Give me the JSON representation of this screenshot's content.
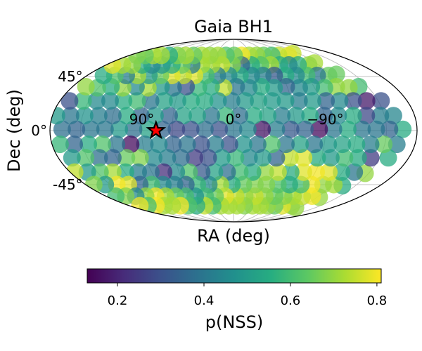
{
  "chart_data": {
    "type": "scatter",
    "projection": "mollweide",
    "title": "Gaia BH1",
    "xlabel": "RA (deg)",
    "ylabel": "Dec (deg)",
    "lat_ticks": [
      {
        "value": 45,
        "label": "45°"
      },
      {
        "value": 0,
        "label": "0°"
      },
      {
        "value": -45,
        "label": "-45°"
      }
    ],
    "lon_ticks": [
      {
        "value": 90,
        "label": "90°"
      },
      {
        "value": 0,
        "label": "0°"
      },
      {
        "value": -90,
        "label": "−90°"
      }
    ],
    "grid": true,
    "colormap": "viridis",
    "point_alpha": 0.75,
    "target": {
      "name": "Gaia BH1",
      "lon": 76,
      "lat": 0,
      "marker": "star",
      "color": "#ff0000"
    },
    "colorbar": {
      "label": "p(NSS)",
      "range": [
        0.13,
        0.81
      ],
      "ticks": [
        {
          "value": 0.2,
          "label": "0.2"
        },
        {
          "value": 0.4,
          "label": "0.4"
        },
        {
          "value": 0.6,
          "label": "0.6"
        },
        {
          "value": 0.8,
          "label": "0.8"
        }
      ]
    },
    "points_lon_lat_value": [
      [
        -166,
        1,
        0.55
      ],
      [
        -162,
        -11,
        0.42
      ],
      [
        -159,
        12,
        0.44
      ],
      [
        -159,
        -22,
        0.55
      ],
      [
        -153,
        24,
        0.3
      ],
      [
        -146,
        -35,
        0.7
      ],
      [
        -140,
        36,
        0.6
      ],
      [
        -134,
        -46,
        0.55
      ],
      [
        -128,
        47,
        0.65
      ],
      [
        -123,
        -57,
        0.7
      ],
      [
        -118,
        58,
        0.72
      ],
      [
        -113,
        -68,
        0.7
      ],
      [
        -108,
        68,
        0.75
      ],
      [
        -153,
        1,
        0.35
      ],
      [
        -149,
        -11,
        0.65
      ],
      [
        -146,
        12,
        0.42
      ],
      [
        -141,
        -22,
        0.25
      ],
      [
        -138,
        24,
        0.18
      ],
      [
        -133,
        -34,
        0.4
      ],
      [
        -128,
        35,
        0.7
      ],
      [
        -122,
        -45,
        0.72
      ],
      [
        -117,
        46,
        0.65
      ],
      [
        -111,
        -56,
        0.8
      ],
      [
        -106,
        56,
        0.7
      ],
      [
        -100,
        -66,
        0.7
      ],
      [
        -95,
        66,
        0.78
      ],
      [
        -140,
        1,
        0.4
      ],
      [
        -136,
        -11,
        0.42
      ],
      [
        -132,
        12,
        0.28
      ],
      [
        -128,
        -22,
        0.55
      ],
      [
        -124,
        24,
        0.3
      ],
      [
        -119,
        -34,
        0.55
      ],
      [
        -115,
        36,
        0.7
      ],
      [
        -109,
        -45,
        0.7
      ],
      [
        -103,
        46,
        0.4
      ],
      [
        -97,
        -56,
        0.75
      ],
      [
        -91,
        56,
        0.55
      ],
      [
        -84,
        -66,
        0.78
      ],
      [
        -78,
        66,
        0.75
      ],
      [
        -126,
        1,
        0.4
      ],
      [
        -122,
        -11,
        0.55
      ],
      [
        -119,
        12,
        0.55
      ],
      [
        -114,
        -22,
        0.6
      ],
      [
        -110,
        24,
        0.45
      ],
      [
        -105,
        -34,
        0.78
      ],
      [
        -101,
        35,
        0.6
      ],
      [
        -95,
        -45,
        0.8
      ],
      [
        -90,
        46,
        0.6
      ],
      [
        -84,
        -56,
        0.72
      ],
      [
        -78,
        56,
        0.45
      ],
      [
        -71,
        -66,
        0.65
      ],
      [
        -66,
        66,
        0.6
      ],
      [
        -112,
        1,
        0.55
      ],
      [
        -108,
        -11,
        0.52
      ],
      [
        -104,
        12,
        0.45
      ],
      [
        -100,
        -22,
        0.5
      ],
      [
        -96,
        24,
        0.35
      ],
      [
        -91,
        -34,
        0.8
      ],
      [
        -87,
        36,
        0.5
      ],
      [
        -82,
        -45,
        0.6
      ],
      [
        -77,
        46,
        0.45
      ],
      [
        -71,
        -56,
        0.68
      ],
      [
        -65,
        56,
        0.55
      ],
      [
        -58,
        -66,
        0.7
      ],
      [
        -52,
        66,
        0.65
      ],
      [
        -98,
        1,
        0.4
      ],
      [
        -94,
        -11,
        0.5
      ],
      [
        -90,
        12,
        0.35
      ],
      [
        -86,
        -22,
        0.55
      ],
      [
        -82,
        24,
        0.5
      ],
      [
        -77,
        -34,
        0.78
      ],
      [
        -73,
        35,
        0.45
      ],
      [
        -68,
        -45,
        0.55
      ],
      [
        -64,
        46,
        0.55
      ],
      [
        -58,
        -56,
        0.65
      ],
      [
        -52,
        56,
        0.72
      ],
      [
        -46,
        -66,
        0.72
      ],
      [
        -40,
        66,
        0.7
      ],
      [
        -84,
        1,
        0.15
      ],
      [
        -80,
        -11,
        0.4
      ],
      [
        -76,
        12,
        0.55
      ],
      [
        -72,
        -22,
        0.78
      ],
      [
        -68,
        24,
        0.42
      ],
      [
        -63,
        -34,
        0.55
      ],
      [
        -59,
        36,
        0.35
      ],
      [
        -54,
        -45,
        0.62
      ],
      [
        -50,
        46,
        0.32
      ],
      [
        -44,
        -56,
        0.7
      ],
      [
        -38,
        56,
        0.62
      ],
      [
        -33,
        -66,
        0.72
      ],
      [
        -27,
        66,
        0.72
      ],
      [
        -70,
        1,
        0.35
      ],
      [
        -66,
        -11,
        0.52
      ],
      [
        -62,
        12,
        0.5
      ],
      [
        -58,
        -22,
        0.75
      ],
      [
        -54,
        24,
        0.5
      ],
      [
        -49,
        -34,
        0.75
      ],
      [
        -45,
        35,
        0.5
      ],
      [
        -40,
        -45,
        0.68
      ],
      [
        -36,
        46,
        0.42
      ],
      [
        -30,
        -56,
        0.75
      ],
      [
        -25,
        56,
        0.55
      ],
      [
        -19,
        -66,
        0.68
      ],
      [
        -14,
        66,
        0.8
      ],
      [
        -56,
        1,
        0.32
      ],
      [
        -52,
        -11,
        0.4
      ],
      [
        -48,
        12,
        0.42
      ],
      [
        -44,
        -22,
        0.35
      ],
      [
        -40,
        24,
        0.5
      ],
      [
        -35,
        -34,
        0.7
      ],
      [
        -31,
        36,
        0.55
      ],
      [
        -26,
        -45,
        0.68
      ],
      [
        -22,
        46,
        0.45
      ],
      [
        -16,
        -56,
        0.7
      ],
      [
        -11,
        56,
        0.35
      ],
      [
        -6,
        -66,
        0.72
      ],
      [
        -1,
        66,
        0.65
      ],
      [
        -42,
        1,
        0.42
      ],
      [
        -38,
        -11,
        0.62
      ],
      [
        -34,
        12,
        0.52
      ],
      [
        -30,
        -22,
        0.5
      ],
      [
        -26,
        24,
        0.52
      ],
      [
        -21,
        -34,
        0.55
      ],
      [
        -17,
        35,
        0.45
      ],
      [
        -12,
        -45,
        0.65
      ],
      [
        -8,
        46,
        0.55
      ],
      [
        -3,
        -56,
        0.75
      ],
      [
        2,
        56,
        0.68
      ],
      [
        8,
        -66,
        0.72
      ],
      [
        13,
        66,
        0.62
      ],
      [
        -28,
        1,
        0.17
      ],
      [
        -24,
        -11,
        0.4
      ],
      [
        -20,
        12,
        0.55
      ],
      [
        -16,
        -22,
        0.45
      ],
      [
        -12,
        24,
        0.5
      ],
      [
        -7,
        -34,
        0.6
      ],
      [
        -3,
        36,
        0.4
      ],
      [
        2,
        -45,
        0.55
      ],
      [
        6,
        46,
        0.45
      ],
      [
        12,
        -56,
        0.78
      ],
      [
        17,
        56,
        0.75
      ],
      [
        22,
        -66,
        0.72
      ],
      [
        27,
        66,
        0.72
      ],
      [
        -14,
        1,
        0.45
      ],
      [
        -10,
        -11,
        0.48
      ],
      [
        -6,
        12,
        0.38
      ],
      [
        -2,
        -22,
        0.58
      ],
      [
        2,
        24,
        0.42
      ],
      [
        7,
        -34,
        0.38
      ],
      [
        11,
        35,
        0.75
      ],
      [
        16,
        -45,
        0.72
      ],
      [
        20,
        46,
        0.42
      ],
      [
        26,
        -56,
        0.65
      ],
      [
        31,
        56,
        0.72
      ],
      [
        36,
        -66,
        0.6
      ],
      [
        41,
        66,
        0.7
      ],
      [
        0,
        1,
        0.4
      ],
      [
        4,
        -11,
        0.3
      ],
      [
        8,
        12,
        0.58
      ],
      [
        12,
        -22,
        0.5
      ],
      [
        16,
        24,
        0.48
      ],
      [
        21,
        -34,
        0.52
      ],
      [
        25,
        36,
        0.55
      ],
      [
        30,
        -45,
        0.45
      ],
      [
        34,
        46,
        0.6
      ],
      [
        40,
        -56,
        0.6
      ],
      [
        45,
        56,
        0.72
      ],
      [
        50,
        -66,
        0.75
      ],
      [
        55,
        66,
        0.72
      ],
      [
        14,
        1,
        0.3
      ],
      [
        18,
        -11,
        0.42
      ],
      [
        22,
        12,
        0.4
      ],
      [
        26,
        -22,
        0.3
      ],
      [
        30,
        24,
        0.55
      ],
      [
        35,
        -34,
        0.32
      ],
      [
        39,
        35,
        0.58
      ],
      [
        44,
        -45,
        0.58
      ],
      [
        48,
        46,
        0.78
      ],
      [
        54,
        -56,
        0.48
      ],
      [
        59,
        56,
        0.42
      ],
      [
        64,
        -66,
        0.55
      ],
      [
        69,
        66,
        0.65
      ],
      [
        28,
        1,
        0.38
      ],
      [
        32,
        -11,
        0.3
      ],
      [
        36,
        12,
        0.52
      ],
      [
        40,
        -22,
        0.25
      ],
      [
        44,
        24,
        0.55
      ],
      [
        49,
        -34,
        0.62
      ],
      [
        53,
        36,
        0.3
      ],
      [
        58,
        -45,
        0.35
      ],
      [
        62,
        46,
        0.75
      ],
      [
        68,
        -56,
        0.6
      ],
      [
        73,
        56,
        0.65
      ],
      [
        78,
        -66,
        0.62
      ],
      [
        83,
        66,
        0.72
      ],
      [
        42,
        1,
        0.3
      ],
      [
        46,
        -11,
        0.4
      ],
      [
        50,
        12,
        0.52
      ],
      [
        54,
        -22,
        0.38
      ],
      [
        58,
        24,
        0.5
      ],
      [
        63,
        -34,
        0.45
      ],
      [
        67,
        35,
        0.4
      ],
      [
        72,
        -45,
        0.42
      ],
      [
        76,
        46,
        0.78
      ],
      [
        82,
        -56,
        0.65
      ],
      [
        87,
        56,
        0.55
      ],
      [
        92,
        -66,
        0.8
      ],
      [
        97,
        66,
        0.68
      ],
      [
        56,
        1,
        0.28
      ],
      [
        60,
        -11,
        0.35
      ],
      [
        64,
        12,
        0.35
      ],
      [
        68,
        -22,
        0.42
      ],
      [
        72,
        24,
        0.52
      ],
      [
        77,
        -34,
        0.22
      ],
      [
        81,
        36,
        0.5
      ],
      [
        86,
        -45,
        0.45
      ],
      [
        90,
        46,
        0.65
      ],
      [
        96,
        -56,
        0.72
      ],
      [
        101,
        56,
        0.5
      ],
      [
        106,
        -66,
        0.72
      ],
      [
        111,
        66,
        0.55
      ],
      [
        70,
        1,
        0.35
      ],
      [
        74,
        -11,
        0.45
      ],
      [
        78,
        12,
        0.5
      ],
      [
        82,
        -22,
        0.45
      ],
      [
        86,
        24,
        0.4
      ],
      [
        91,
        -34,
        0.4
      ],
      [
        95,
        35,
        0.72
      ],
      [
        100,
        -45,
        0.6
      ],
      [
        104,
        46,
        0.5
      ],
      [
        110,
        -56,
        0.8
      ],
      [
        115,
        56,
        0.45
      ],
      [
        120,
        -66,
        0.72
      ],
      [
        125,
        66,
        0.72
      ],
      [
        84,
        1,
        0.52
      ],
      [
        88,
        -11,
        0.42
      ],
      [
        92,
        12,
        0.35
      ],
      [
        96,
        -22,
        0.68
      ],
      [
        100,
        24,
        0.6
      ],
      [
        105,
        -34,
        0.42
      ],
      [
        109,
        36,
        0.45
      ],
      [
        114,
        -45,
        0.35
      ],
      [
        118,
        46,
        0.72
      ],
      [
        124,
        -56,
        0.7
      ],
      [
        129,
        56,
        0.55
      ],
      [
        134,
        -66,
        0.8
      ],
      [
        139,
        66,
        0.72
      ],
      [
        98,
        1,
        0.38
      ],
      [
        102,
        -11,
        0.15
      ],
      [
        106,
        12,
        0.55
      ],
      [
        110,
        -22,
        0.65
      ],
      [
        114,
        24,
        0.55
      ],
      [
        119,
        -34,
        0.55
      ],
      [
        123,
        35,
        0.7
      ],
      [
        128,
        -45,
        0.78
      ],
      [
        132,
        46,
        0.42
      ],
      [
        138,
        -56,
        0.45
      ],
      [
        143,
        56,
        0.7
      ],
      [
        148,
        -66,
        0.6
      ],
      [
        153,
        66,
        0.65
      ],
      [
        112,
        1,
        0.5
      ],
      [
        116,
        -11,
        0.4
      ],
      [
        120,
        12,
        0.38
      ],
      [
        124,
        -22,
        0.35
      ],
      [
        128,
        24,
        0.45
      ],
      [
        133,
        -34,
        0.72
      ],
      [
        137,
        36,
        0.55
      ],
      [
        142,
        -45,
        0.8
      ],
      [
        146,
        46,
        0.62
      ],
      [
        152,
        -56,
        0.68
      ],
      [
        157,
        56,
        0.72
      ],
      [
        162,
        -66,
        0.8
      ],
      [
        167,
        66,
        0.68
      ],
      [
        126,
        1,
        0.4
      ],
      [
        130,
        -11,
        0.62
      ],
      [
        134,
        12,
        0.42
      ],
      [
        138,
        -22,
        0.38
      ],
      [
        142,
        24,
        0.45
      ],
      [
        147,
        -34,
        0.62
      ],
      [
        151,
        35,
        0.62
      ],
      [
        156,
        -45,
        0.5
      ],
      [
        160,
        46,
        0.55
      ],
      [
        166,
        -56,
        0.6
      ],
      [
        171,
        56,
        0.78
      ],
      [
        140,
        1,
        0.4
      ],
      [
        144,
        -11,
        0.55
      ],
      [
        148,
        12,
        0.48
      ],
      [
        152,
        -22,
        0.62
      ],
      [
        156,
        24,
        0.58
      ],
      [
        161,
        -34,
        0.5
      ],
      [
        165,
        36,
        0.7
      ],
      [
        170,
        -45,
        0.68
      ],
      [
        154,
        1,
        0.35
      ],
      [
        158,
        -11,
        0.35
      ],
      [
        162,
        12,
        0.4
      ],
      [
        166,
        -22,
        0.5
      ],
      [
        170,
        24,
        0.3
      ],
      [
        175,
        -34,
        0.75
      ],
      [
        168,
        1,
        0.38
      ],
      [
        172,
        -11,
        0.58
      ],
      [
        176,
        12,
        0.5
      ]
    ]
  }
}
